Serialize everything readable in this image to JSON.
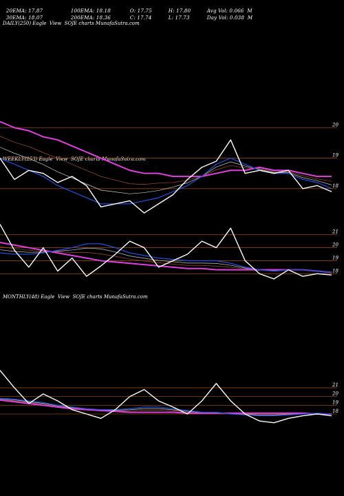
{
  "header": {
    "row1": [
      {
        "label": "20EMA: 17.87"
      },
      {
        "label": "100EMA: 18.18"
      },
      {
        "label": "O: 17.75"
      },
      {
        "label": "H: 17.80"
      },
      {
        "label": "Avg Vol: 0.066  M"
      }
    ],
    "row2": [
      {
        "label": "30EMA: 18.07"
      },
      {
        "label": "200EMA: 18.36"
      },
      {
        "label": "C: 17.74"
      },
      {
        "label": "L: 17.73"
      },
      {
        "label": "Day Vol: 0.038  M"
      }
    ]
  },
  "panels": {
    "daily": {
      "label": "DAILY(250) Eagle  View  SOJE charts MunafaSutra.com"
    },
    "weekly": {
      "label": "WEEKLY(253) Eagle  View  SOJE charts MunafaSutra.com"
    },
    "monthly": {
      "label": "MONTHLY(48) Eagle  View  SOJE charts MunafaSutra.com"
    }
  },
  "colors": {
    "background": "#000000",
    "price": "#ffffff",
    "ema_short": "#1f4fd6",
    "ema_long": "#e040e0",
    "ema_mid": "#a0522d",
    "grid": "#8b4513"
  },
  "chart_data": [
    {
      "type": "line",
      "name": "daily",
      "y_ticks": [
        20,
        19,
        18
      ],
      "ylim": [
        17.0,
        20.8
      ],
      "x_count": 24,
      "series": [
        {
          "role": "price",
          "values": [
            19.0,
            18.3,
            18.6,
            18.5,
            18.2,
            18.4,
            18.1,
            17.4,
            17.5,
            17.6,
            17.2,
            17.5,
            17.8,
            18.3,
            18.7,
            18.9,
            19.6,
            18.5,
            18.6,
            18.5,
            18.6,
            18.0,
            18.1,
            17.9
          ]
        },
        {
          "role": "ema_short",
          "values": [
            19.0,
            18.8,
            18.6,
            18.4,
            18.1,
            17.9,
            17.7,
            17.5,
            17.5,
            17.5,
            17.6,
            17.7,
            17.9,
            18.1,
            18.4,
            18.8,
            19.0,
            18.8,
            18.6,
            18.5,
            18.5,
            18.3,
            18.2,
            18.0
          ]
        },
        {
          "role": "ema_long",
          "values": [
            20.2,
            20.0,
            19.9,
            19.7,
            19.6,
            19.4,
            19.2,
            19.0,
            18.8,
            18.6,
            18.5,
            18.5,
            18.4,
            18.4,
            18.4,
            18.5,
            18.6,
            18.6,
            18.7,
            18.6,
            18.6,
            18.5,
            18.4,
            18.4
          ]
        }
      ]
    },
    {
      "type": "line",
      "name": "weekly",
      "y_ticks": [
        21,
        20,
        19,
        18
      ],
      "ylim": [
        16.8,
        22.2
      ],
      "x_count": 24,
      "series": [
        {
          "role": "price",
          "values": [
            21.8,
            19.8,
            18.5,
            20.0,
            18.2,
            19.2,
            17.8,
            18.6,
            19.5,
            20.5,
            20.0,
            18.5,
            19.0,
            19.5,
            20.5,
            20.0,
            21.5,
            19.0,
            18.0,
            17.6,
            18.3,
            17.8,
            18.0,
            17.9
          ]
        },
        {
          "role": "ema_short",
          "values": [
            19.6,
            19.5,
            19.5,
            19.6,
            19.8,
            20.0,
            20.3,
            20.3,
            20.0,
            19.6,
            19.4,
            19.2,
            19.1,
            19.0,
            19.0,
            19.0,
            18.8,
            18.5,
            18.3,
            18.2,
            18.3,
            18.3,
            18.2,
            18.1
          ]
        },
        {
          "role": "ema_long",
          "values": [
            20.4,
            20.2,
            20.0,
            19.8,
            19.6,
            19.4,
            19.2,
            19.0,
            18.9,
            18.8,
            18.7,
            18.6,
            18.5,
            18.4,
            18.4,
            18.3,
            18.3,
            18.3,
            18.3,
            18.3,
            18.3,
            18.3,
            18.2,
            18.1
          ]
        }
      ]
    },
    {
      "type": "line",
      "name": "monthly",
      "y_ticks": [
        21,
        20,
        19,
        18
      ],
      "ylim": [
        16.5,
        23.6
      ],
      "x_count": 24,
      "series": [
        {
          "role": "price",
          "values": [
            23.0,
            21.0,
            19.2,
            20.3,
            19.5,
            18.5,
            18.0,
            17.5,
            18.5,
            20.0,
            20.8,
            19.5,
            18.8,
            18.0,
            19.5,
            21.5,
            19.5,
            18.0,
            17.2,
            17.0,
            17.5,
            17.8,
            18.0,
            17.8
          ]
        },
        {
          "role": "ema_short",
          "values": [
            19.8,
            19.7,
            19.5,
            19.3,
            19.0,
            18.8,
            18.6,
            18.5,
            18.5,
            18.6,
            18.8,
            18.8,
            18.6,
            18.4,
            18.2,
            18.2,
            18.0,
            17.9,
            17.8,
            17.8,
            17.9,
            18.0,
            18.1,
            18.0
          ]
        },
        {
          "role": "ema_long",
          "values": [
            19.6,
            19.4,
            19.2,
            19.0,
            18.8,
            18.6,
            18.5,
            18.4,
            18.3,
            18.2,
            18.2,
            18.2,
            18.2,
            18.1,
            18.1,
            18.1,
            18.1,
            18.1,
            18.1,
            18.1,
            18.1,
            18.1,
            18.0,
            18.0
          ]
        }
      ]
    }
  ]
}
